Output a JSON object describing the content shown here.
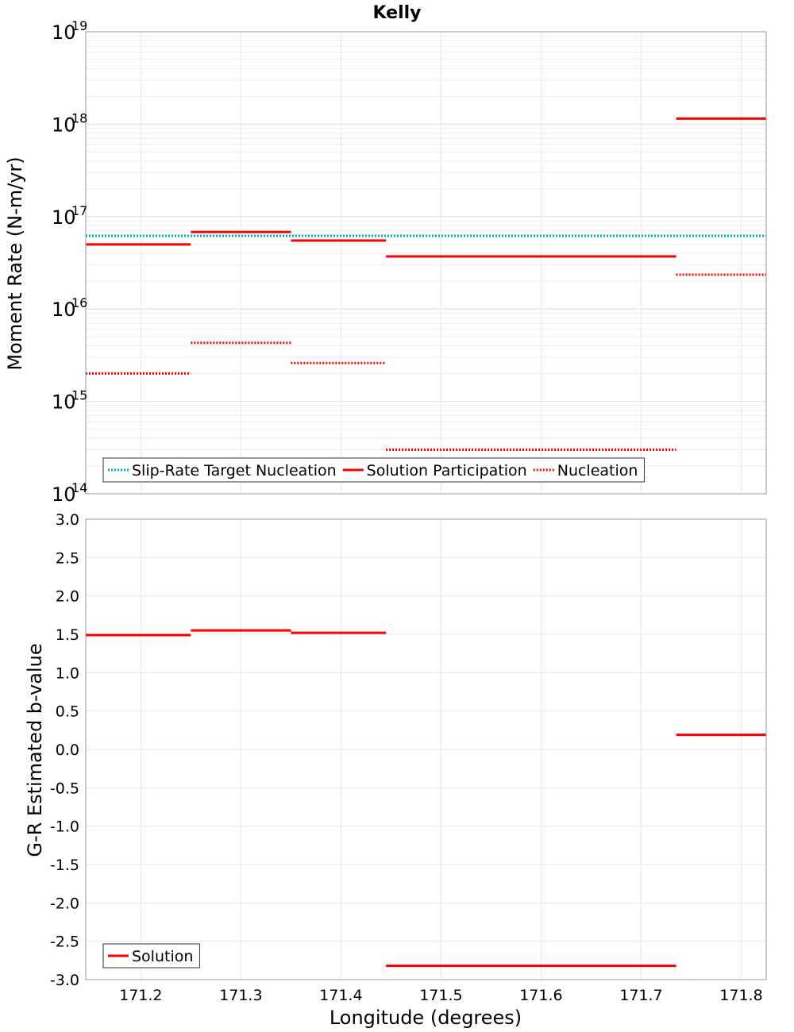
{
  "title": "Kelly",
  "chart_data": [
    {
      "type": "line",
      "scale": "log",
      "ylabel": "Moment Rate (N-m/yr)",
      "xlim": [
        171.145,
        171.825
      ],
      "ylim_exp": [
        14,
        19
      ],
      "y_ticks": [
        {
          "base": "10",
          "exp": "14"
        },
        {
          "base": "10",
          "exp": "15"
        },
        {
          "base": "10",
          "exp": "16"
        },
        {
          "base": "10",
          "exp": "17"
        },
        {
          "base": "10",
          "exp": "18"
        },
        {
          "base": "10",
          "exp": "19"
        }
      ],
      "series": [
        {
          "name": "Slip-Rate Target Nucleation",
          "color": "#00b0b0",
          "style": "dotted",
          "segments": [
            [
              171.145,
              171.825,
              6.2e+16
            ]
          ]
        },
        {
          "name": "Solution Participation",
          "color": "#ff0000",
          "style": "solid",
          "segments": [
            [
              171.145,
              171.25,
              5e+16
            ],
            [
              171.25,
              171.35,
              6.8e+16
            ],
            [
              171.35,
              171.445,
              5.5e+16
            ],
            [
              171.445,
              171.735,
              3.7e+16
            ],
            [
              171.735,
              171.825,
              1.15e+18
            ]
          ]
        },
        {
          "name": "Nucleation",
          "color": "#ff0000",
          "style": "dotted",
          "segments": [
            [
              171.145,
              171.25,
              2000000000000000.0
            ],
            [
              171.25,
              171.35,
              4300000000000000.0
            ],
            [
              171.35,
              171.445,
              2600000000000000.0
            ],
            [
              171.445,
              171.735,
              300000000000000.0
            ],
            [
              171.735,
              171.825,
              2.35e+16
            ]
          ]
        }
      ],
      "legend": [
        {
          "label": "Slip-Rate Target Nucleation",
          "color": "#00b0b0",
          "style": "dotted"
        },
        {
          "label": "Solution Participation",
          "color": "#ff0000",
          "style": "solid"
        },
        {
          "label": "Nucleation",
          "color": "#ff0000",
          "style": "dotted"
        }
      ]
    },
    {
      "type": "line",
      "scale": "linear",
      "ylabel": "G-R Estimated b-value",
      "xlabel": "Longitude (degrees)",
      "xlim": [
        171.145,
        171.825
      ],
      "ylim": [
        -3.0,
        3.0
      ],
      "x_ticks": [
        "171.2",
        "171.3",
        "171.4",
        "171.5",
        "171.6",
        "171.7",
        "171.8"
      ],
      "y_ticks": [
        "3.0",
        "2.5",
        "2.0",
        "1.5",
        "1.0",
        "0.5",
        "0.0",
        "-0.5",
        "-1.0",
        "-1.5",
        "-2.0",
        "-2.5",
        "-3.0"
      ],
      "series": [
        {
          "name": "Solution",
          "color": "#ff0000",
          "style": "solid",
          "segments": [
            [
              171.145,
              171.25,
              1.49
            ],
            [
              171.25,
              171.35,
              1.55
            ],
            [
              171.35,
              171.445,
              1.52
            ],
            [
              171.445,
              171.735,
              -2.82
            ],
            [
              171.735,
              171.825,
              0.19
            ]
          ]
        }
      ],
      "legend": [
        {
          "label": "Solution",
          "color": "#ff0000",
          "style": "solid"
        }
      ]
    }
  ]
}
